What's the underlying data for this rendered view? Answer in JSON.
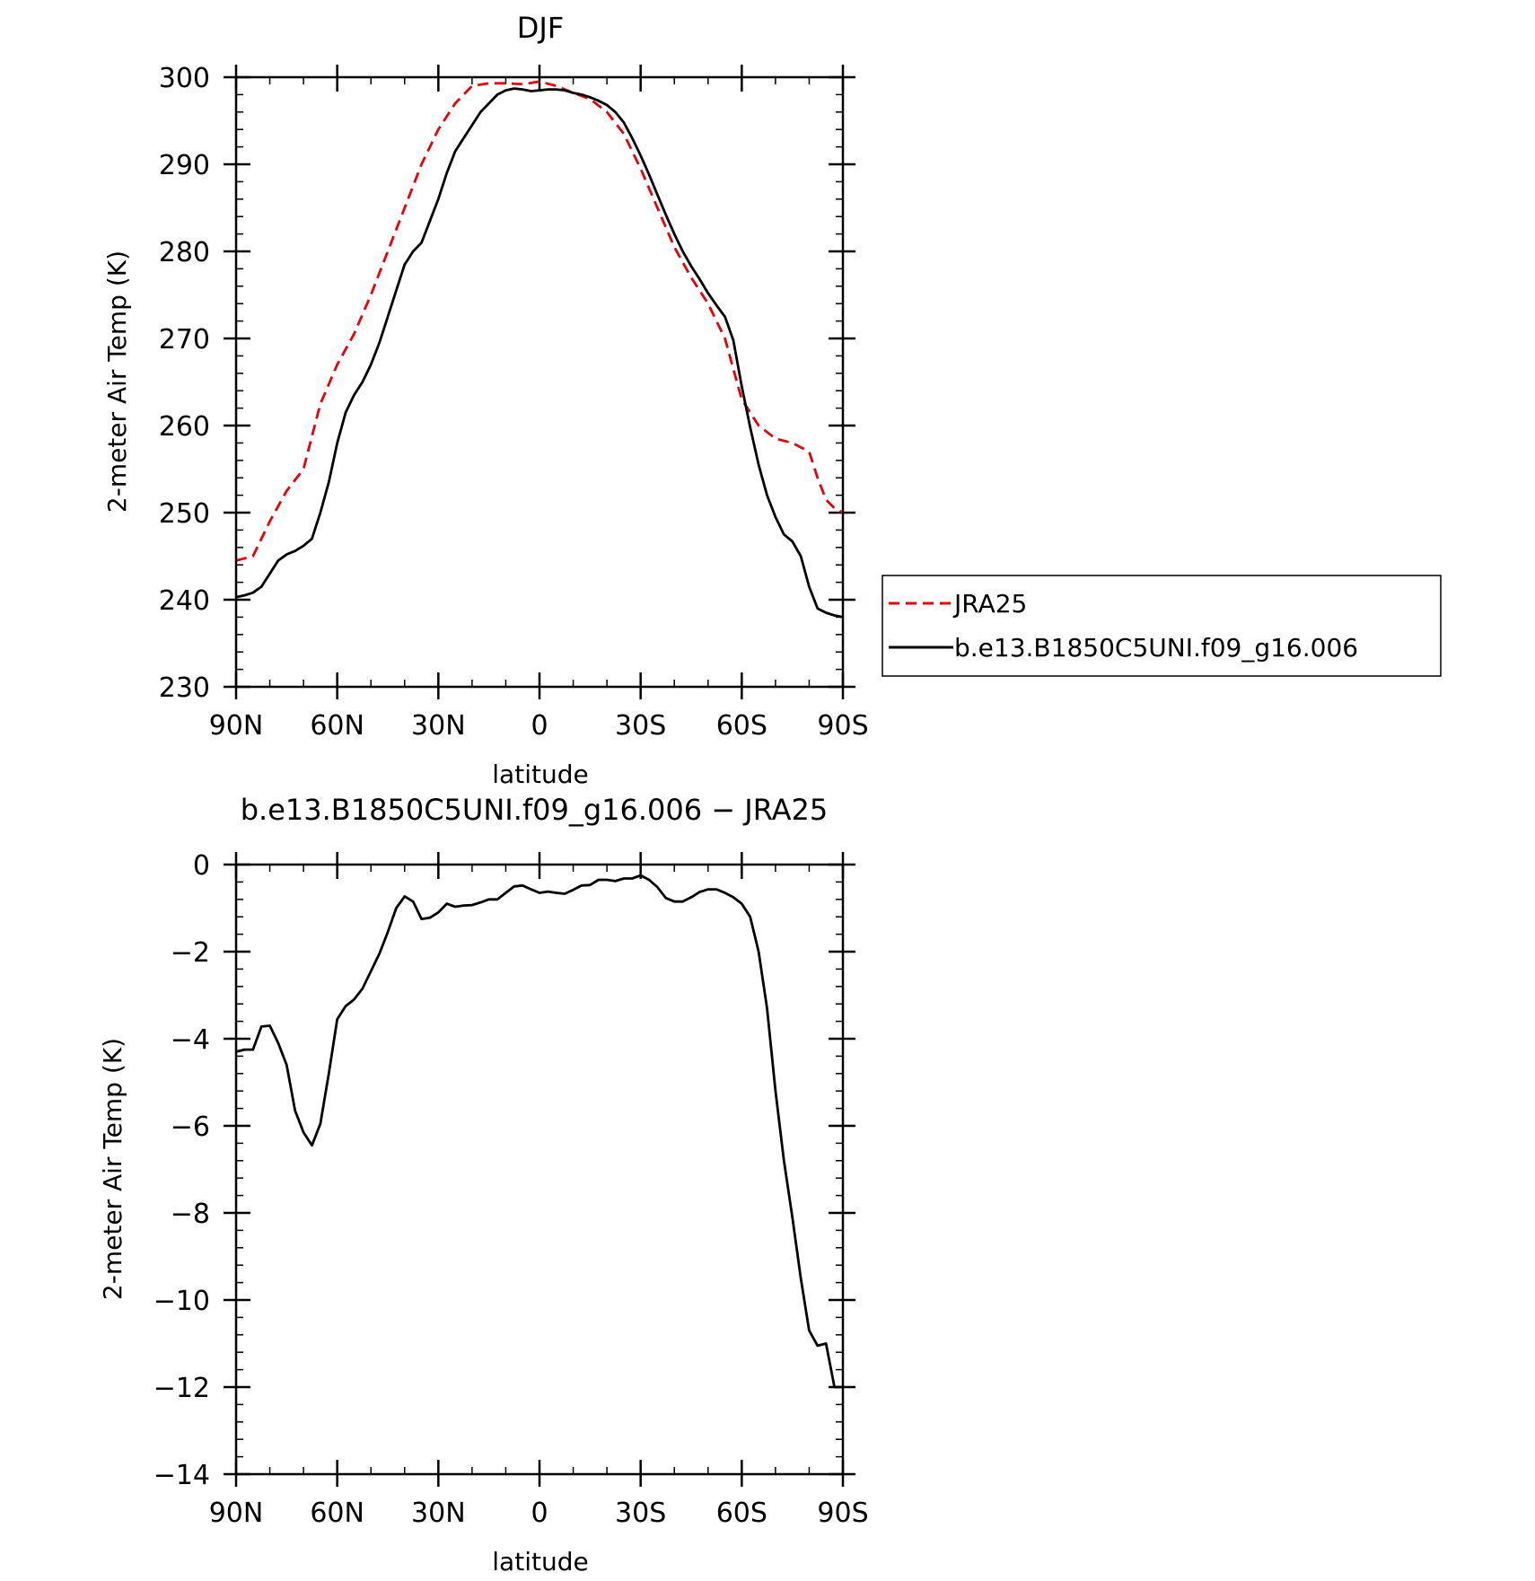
{
  "chart_data": [
    {
      "type": "line",
      "title": "DJF",
      "xlabel": "latitude",
      "ylabel": "2-meter Air Temp (K)",
      "xlim": [
        90,
        -90
      ],
      "ylim": [
        230,
        300
      ],
      "xticks": [
        {
          "value": 90,
          "label": "90N"
        },
        {
          "value": 60,
          "label": "60N"
        },
        {
          "value": 30,
          "label": "30N"
        },
        {
          "value": 0,
          "label": "0"
        },
        {
          "value": -30,
          "label": "30S"
        },
        {
          "value": -60,
          "label": "60S"
        },
        {
          "value": -90,
          "label": "90S"
        }
      ],
      "yticks": [
        {
          "value": 300,
          "label": "300"
        },
        {
          "value": 290,
          "label": "290"
        },
        {
          "value": 280,
          "label": "280"
        },
        {
          "value": 270,
          "label": "270"
        },
        {
          "value": 260,
          "label": "260"
        },
        {
          "value": 250,
          "label": "250"
        },
        {
          "value": 240,
          "label": "240"
        },
        {
          "value": 230,
          "label": "230"
        }
      ],
      "legend": "right",
      "series": [
        {
          "name": "JRA25",
          "color": "#e8000b",
          "dash": "dashed",
          "x": [
            90,
            85,
            80,
            75,
            70,
            65,
            60,
            55,
            50,
            45,
            40,
            35,
            30,
            25,
            20,
            15,
            10,
            5,
            0,
            -5,
            -10,
            -15,
            -20,
            -25,
            -30,
            -35,
            -40,
            -45,
            -50,
            -55,
            -60,
            -65,
            -70,
            -75,
            -80,
            -82.5,
            -85,
            -87.5,
            -90
          ],
          "y": [
            244.5,
            245,
            249,
            252.5,
            255,
            262.5,
            267,
            270.5,
            275,
            280,
            285,
            290,
            294,
            297,
            299,
            299.3,
            299.3,
            299.2,
            299.5,
            299,
            298.2,
            297.5,
            296,
            293.5,
            289.5,
            285,
            280.5,
            277,
            274,
            270,
            263,
            260,
            258.5,
            258,
            257,
            254,
            251.5,
            250.5,
            250
          ]
        },
        {
          "name": "b.e13.B1850C5UNI.f09_g16.006",
          "color": "#000000",
          "dash": "solid",
          "x": [
            90,
            87.5,
            85,
            82.5,
            80,
            77.5,
            75,
            72.5,
            70,
            67.5,
            65,
            62.5,
            60,
            57.5,
            55,
            52.5,
            50,
            47.5,
            45,
            42.5,
            40,
            37.5,
            35,
            32.5,
            30,
            27.5,
            25,
            22.5,
            20,
            17.5,
            15,
            12.5,
            10,
            7.5,
            5,
            2.5,
            0,
            -2.5,
            -5,
            -7.5,
            -10,
            -12.5,
            -15,
            -17.5,
            -20,
            -22.5,
            -25,
            -27.5,
            -30,
            -32.5,
            -35,
            -37.5,
            -40,
            -42.5,
            -45,
            -47.5,
            -50,
            -52.5,
            -55,
            -57.5,
            -60,
            -62.5,
            -65,
            -67.5,
            -70,
            -72.5,
            -75,
            -77.5,
            -80,
            -82.5,
            -85,
            -87.5,
            -90
          ],
          "y": [
            240.3,
            240.5,
            240.8,
            241.5,
            243,
            244.5,
            245.2,
            245.6,
            246.2,
            247,
            250,
            253.5,
            258,
            261.5,
            263.5,
            265,
            267,
            269.5,
            272.5,
            275.5,
            278.5,
            280,
            281,
            283.5,
            286,
            289,
            291.5,
            293,
            294.5,
            296,
            297,
            298,
            298.5,
            298.7,
            298.6,
            298.4,
            298.5,
            298.6,
            298.6,
            298.5,
            298.2,
            298,
            297.7,
            297.3,
            296.8,
            296,
            294.8,
            293,
            291,
            288.8,
            286.5,
            284.2,
            282,
            280,
            278.3,
            276.8,
            275.2,
            273.8,
            272.5,
            269.8,
            264.5,
            259.8,
            255.5,
            252,
            249.5,
            247.5,
            246.7,
            245,
            241.5,
            239,
            238.5,
            238.2,
            238
          ]
        }
      ]
    },
    {
      "type": "line",
      "title": "b.e13.B1850C5UNI.f09_g16.006 − JRA25",
      "xlabel": "latitude",
      "ylabel": "2-meter Air Temp (K)",
      "xlim": [
        90,
        -90
      ],
      "ylim": [
        -14,
        0
      ],
      "xticks": [
        {
          "value": 90,
          "label": "90N"
        },
        {
          "value": 60,
          "label": "60N"
        },
        {
          "value": 30,
          "label": "30N"
        },
        {
          "value": 0,
          "label": "0"
        },
        {
          "value": -30,
          "label": "30S"
        },
        {
          "value": -60,
          "label": "60S"
        },
        {
          "value": -90,
          "label": "90S"
        }
      ],
      "yticks": [
        {
          "value": 0,
          "label": "0"
        },
        {
          "value": -2,
          "label": "−2"
        },
        {
          "value": -4,
          "label": "−4"
        },
        {
          "value": -6,
          "label": "−6"
        },
        {
          "value": -8,
          "label": "−8"
        },
        {
          "value": -10,
          "label": "−10"
        },
        {
          "value": -12,
          "label": "−12"
        },
        {
          "value": -14,
          "label": "−14"
        }
      ],
      "series": [
        {
          "color": "#000000",
          "dash": "solid",
          "x": [
            90,
            87.5,
            85,
            82.5,
            80,
            77.5,
            75,
            72.5,
            70,
            67.5,
            65,
            62.5,
            60,
            57.5,
            55,
            52.5,
            50,
            47.5,
            45,
            42.5,
            40,
            37.5,
            35,
            32.5,
            30,
            27.5,
            25,
            22.5,
            20,
            17.5,
            15,
            12.5,
            10,
            7.5,
            5,
            2.5,
            0,
            -2.5,
            -5,
            -7.5,
            -10,
            -12.5,
            -15,
            -17.5,
            -20,
            -22.5,
            -25,
            -27.5,
            -30,
            -32.5,
            -35,
            -37.5,
            -40,
            -42.5,
            -45,
            -47.5,
            -50,
            -52.5,
            -55,
            -57.5,
            -60,
            -62.5,
            -65,
            -67.5,
            -70,
            -72.5,
            -75,
            -77.5,
            -80,
            -82.5,
            -85,
            -87.5,
            -90
          ],
          "y": [
            -4.3,
            -4.25,
            -4.25,
            -3.72,
            -3.7,
            -4.1,
            -4.6,
            -5.65,
            -6.15,
            -6.45,
            -5.95,
            -4.8,
            -3.55,
            -3.25,
            -3.1,
            -2.85,
            -2.45,
            -2.05,
            -1.55,
            -1.0,
            -0.73,
            -0.85,
            -1.25,
            -1.22,
            -1.1,
            -0.9,
            -0.97,
            -0.94,
            -0.93,
            -0.87,
            -0.8,
            -0.8,
            -0.65,
            -0.5,
            -0.48,
            -0.57,
            -0.65,
            -0.62,
            -0.65,
            -0.67,
            -0.58,
            -0.48,
            -0.47,
            -0.35,
            -0.35,
            -0.38,
            -0.32,
            -0.32,
            -0.25,
            -0.35,
            -0.52,
            -0.77,
            -0.85,
            -0.85,
            -0.75,
            -0.63,
            -0.57,
            -0.57,
            -0.65,
            -0.75,
            -0.9,
            -1.2,
            -2.0,
            -3.3,
            -5.2,
            -6.8,
            -8.1,
            -9.5,
            -10.7,
            -11.05,
            -11.0,
            -12.0,
            -12.0
          ]
        }
      ]
    }
  ]
}
